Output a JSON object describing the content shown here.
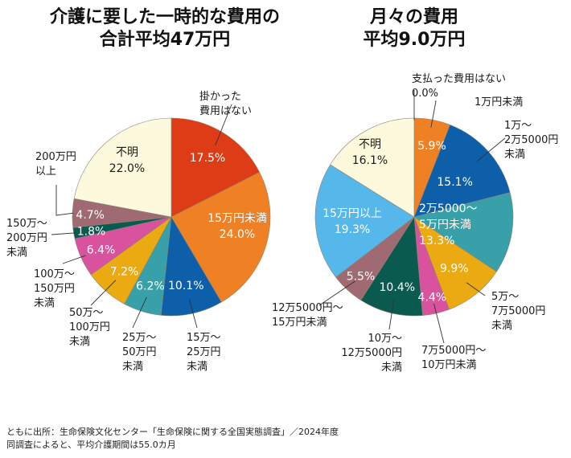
{
  "chart_data": [
    {
      "type": "pie",
      "title": "介護に要した一時的な費用の\n合計平均47万円",
      "title_lines": [
        "介護に要した一時的な費用の",
        "合計平均47万円"
      ],
      "start": "12 o'clock",
      "direction": "clockwise",
      "slices": [
        {
          "label": "掛かった費用はない",
          "value": 17.5,
          "value_label": "17.5%",
          "color": "#de3c17",
          "text_color": "#ffffff",
          "label_position": "outside-callout"
        },
        {
          "label": "15万円未満",
          "value": 24.0,
          "value_label": "24.0%",
          "color": "#ef8024",
          "text_color": "#ffffff",
          "label_position": "inside"
        },
        {
          "label": "15万～25万円未満",
          "value": 10.1,
          "value_label": "10.1%",
          "color": "#0c5fa8",
          "text_color": "#ffffff",
          "label_position": "outside-callout"
        },
        {
          "label": "25万～50万円未満",
          "value": 6.2,
          "value_label": "6.2%",
          "color": "#37a0a8",
          "text_color": "#ffffff",
          "label_position": "outside-callout"
        },
        {
          "label": "50万～100万円未満",
          "value": 7.2,
          "value_label": "7.2%",
          "color": "#ebaa12",
          "text_color": "#ffffff",
          "label_position": "outside-callout"
        },
        {
          "label": "100万～150万円未満",
          "value": 6.4,
          "value_label": "6.4%",
          "color": "#d9529e",
          "text_color": "#ffffff",
          "label_position": "outside-callout"
        },
        {
          "label": "150万～200万円未満",
          "value": 1.8,
          "value_label": "1.8%",
          "color": "#0b5a50",
          "text_color": "#ffffff",
          "label_position": "outside-callout"
        },
        {
          "label": "200万円以上",
          "value": 4.7,
          "value_label": "4.7%",
          "color": "#a06a72",
          "text_color": "#ffffff",
          "label_position": "outside-callout"
        },
        {
          "label": "不明",
          "value": 22.0,
          "value_label": "22.0%",
          "color": "#fdf9dc",
          "text_color": "#1a1a1a",
          "label_position": "inside"
        }
      ]
    },
    {
      "type": "pie",
      "title": "月々の費用\n平均9.0万円",
      "title_lines": [
        "月々の費用",
        "平均9.0万円"
      ],
      "start": "12 o'clock",
      "direction": "clockwise",
      "slices": [
        {
          "label": "支払った費用はない",
          "value": 0.0,
          "value_label": "0.0%",
          "color": "#ffffff",
          "text_color": "#1a1a1a",
          "label_position": "outside-callout"
        },
        {
          "label": "1万円未満",
          "value": 5.9,
          "value_label": "5.9%",
          "color": "#ef8024",
          "text_color": "#ffffff",
          "label_position": "outside-callout"
        },
        {
          "label": "1万～2万5000円未満",
          "value": 15.1,
          "value_label": "15.1%",
          "color": "#0c5fa8",
          "text_color": "#ffffff",
          "label_position": "outside-callout"
        },
        {
          "label": "2万5000～5万円未満",
          "value": 13.3,
          "value_label": "13.3%",
          "color": "#37a0a8",
          "text_color": "#ffffff",
          "label_position": "inside"
        },
        {
          "label": "5万～7万5000円未満",
          "value": 9.9,
          "value_label": "9.9%",
          "color": "#ebaa12",
          "text_color": "#ffffff",
          "label_position": "outside-callout"
        },
        {
          "label": "7万5000円～10万円未満",
          "value": 4.4,
          "value_label": "4.4%",
          "color": "#d9529e",
          "text_color": "#ffffff",
          "label_position": "outside-callout"
        },
        {
          "label": "10万～12万5000円未満",
          "value": 10.4,
          "value_label": "10.4%",
          "color": "#0b5a50",
          "text_color": "#ffffff",
          "label_position": "outside-callout"
        },
        {
          "label": "12万5000円～15万円未満",
          "value": 5.5,
          "value_label": "5.5%",
          "color": "#a06a72",
          "text_color": "#ffffff",
          "label_position": "outside-callout"
        },
        {
          "label": "15万円以上",
          "value": 19.3,
          "value_label": "19.3%",
          "color": "#56b8ea",
          "text_color": "#ffffff",
          "label_position": "inside"
        },
        {
          "label": "不明",
          "value": 16.1,
          "value_label": "16.1%",
          "color": "#fdf9dc",
          "text_color": "#1a1a1a",
          "label_position": "inside"
        }
      ]
    }
  ],
  "external_labels": {
    "left": [
      {
        "slice": 0,
        "lines": [
          "掛かった",
          "費用はない"
        ]
      },
      {
        "slice": 2,
        "lines": [
          "15万～",
          "25万円",
          "未満"
        ]
      },
      {
        "slice": 3,
        "lines": [
          "25万～",
          "50万円",
          "未満"
        ]
      },
      {
        "slice": 4,
        "lines": [
          "50万～",
          "100万円",
          "未満"
        ]
      },
      {
        "slice": 5,
        "lines": [
          "100万～",
          "150万円",
          "未満"
        ]
      },
      {
        "slice": 6,
        "lines": [
          "150万～",
          "200万円",
          "未満"
        ]
      },
      {
        "slice": 7,
        "lines": [
          "200万円",
          "以上"
        ]
      }
    ],
    "right": [
      {
        "slice": 0,
        "lines": [
          "支払った費用はない",
          "0.0%"
        ]
      },
      {
        "slice": 1,
        "lines": [
          "1万円未満"
        ]
      },
      {
        "slice": 2,
        "lines": [
          "1万～",
          "2万5000円",
          "未満"
        ]
      },
      {
        "slice": 4,
        "lines": [
          "5万～",
          "7万5000円",
          "未満"
        ]
      },
      {
        "slice": 5,
        "lines": [
          "7万5000円～",
          "10万円未満"
        ]
      },
      {
        "slice": 6,
        "lines": [
          "10万～",
          "12万5000円",
          "未満"
        ]
      },
      {
        "slice": 7,
        "lines": [
          "12万5000円～",
          "15万円未満"
        ]
      }
    ]
  },
  "inside_labels": {
    "left": [
      {
        "slice": 0,
        "lines": [
          "17.5%"
        ]
      },
      {
        "slice": 1,
        "lines": [
          "15万円未満",
          "24.0%"
        ]
      },
      {
        "slice": 2,
        "lines": [
          "10.1%"
        ]
      },
      {
        "slice": 3,
        "lines": [
          "6.2%"
        ]
      },
      {
        "slice": 4,
        "lines": [
          "7.2%"
        ]
      },
      {
        "slice": 5,
        "lines": [
          "6.4%"
        ]
      },
      {
        "slice": 6,
        "lines": [
          "1.8%"
        ]
      },
      {
        "slice": 7,
        "lines": [
          "4.7%"
        ]
      },
      {
        "slice": 8,
        "lines": [
          "不明",
          "22.0%"
        ]
      }
    ],
    "right": [
      {
        "slice": 1,
        "lines": [
          "5.9%"
        ]
      },
      {
        "slice": 2,
        "lines": [
          "15.1%"
        ]
      },
      {
        "slice": 3,
        "lines": [
          "2万5000～",
          "5万円未満",
          "13.3%"
        ]
      },
      {
        "slice": 4,
        "lines": [
          "9.9%"
        ]
      },
      {
        "slice": 5,
        "lines": [
          "4.4%"
        ]
      },
      {
        "slice": 6,
        "lines": [
          "10.4%"
        ]
      },
      {
        "slice": 7,
        "lines": [
          "5.5%"
        ]
      },
      {
        "slice": 8,
        "lines": [
          "15万円以上",
          "19.3%"
        ]
      },
      {
        "slice": 9,
        "lines": [
          "不明",
          "16.1%"
        ]
      }
    ]
  },
  "footer": {
    "line1": "ともに出所：生命保険文化センター「生命保険に関する全国実態調査」／2024年度",
    "line2": "同調査によると、平均介護期間は55.0カ月"
  }
}
